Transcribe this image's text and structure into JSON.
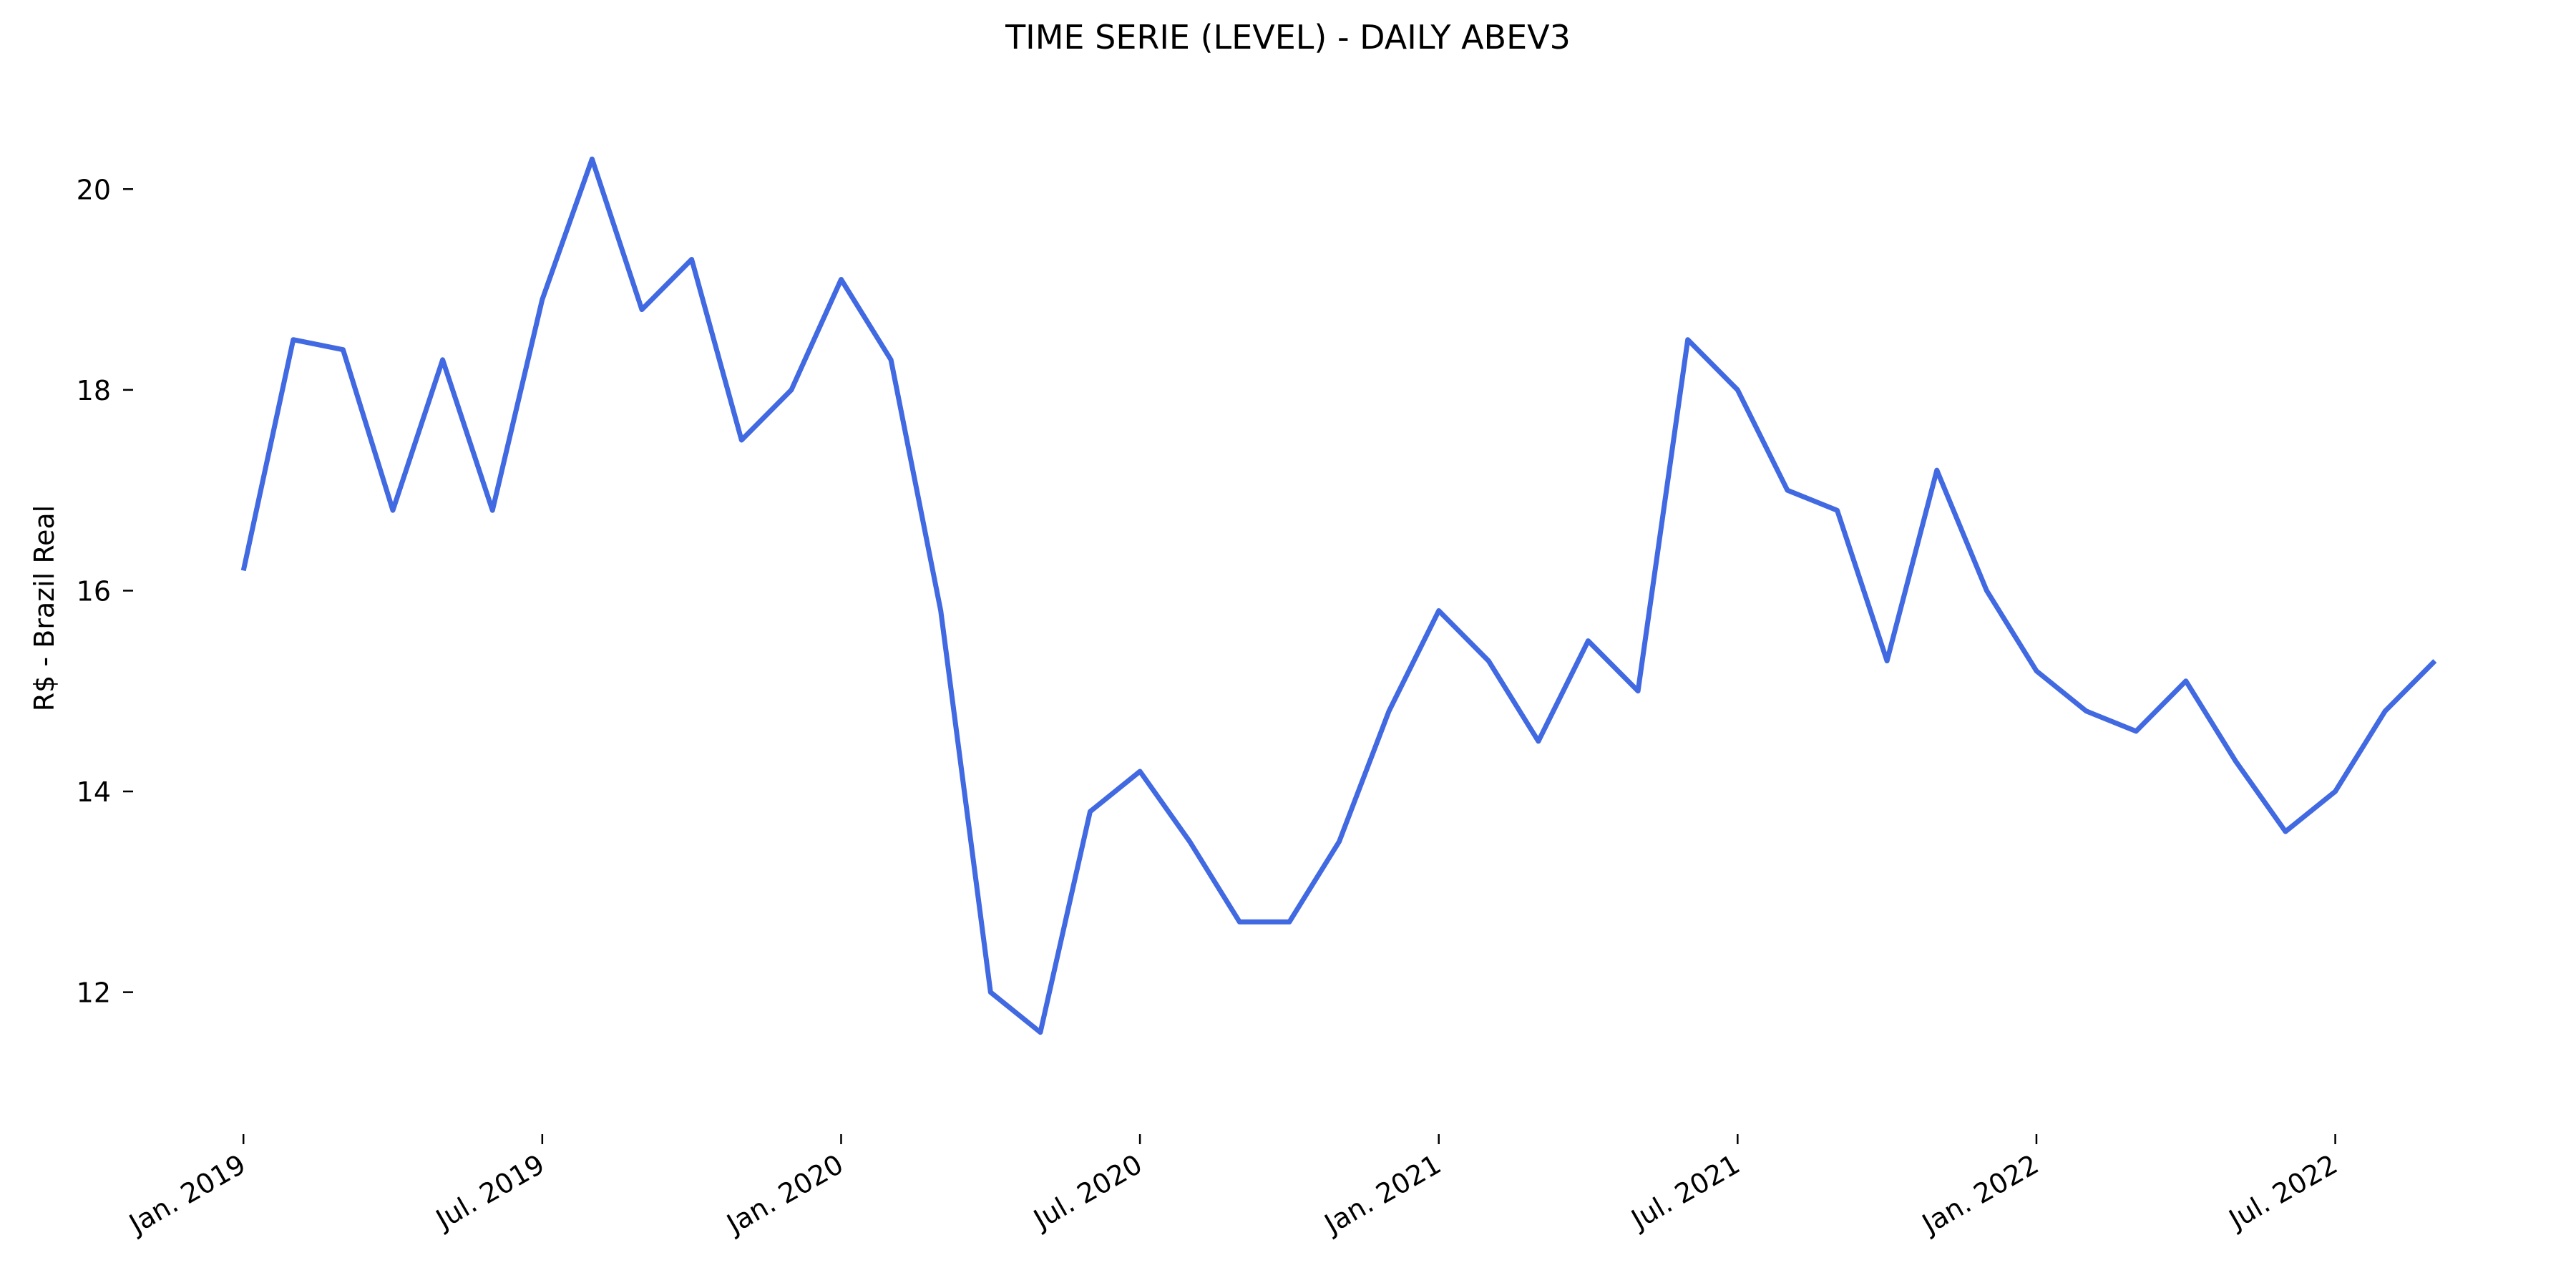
{
  "chart_data": {
    "type": "line",
    "title": "TIME SERIE (LEVEL) - DAILY ABEV3",
    "y_label": "R$ - Brazil Real",
    "x": [
      "2019-01",
      "2019-02",
      "2019-03",
      "2019-04",
      "2019-05",
      "2019-06",
      "2019-07",
      "2019-08",
      "2019-09",
      "2019-10",
      "2019-11",
      "2019-12",
      "2020-01",
      "2020-02",
      "2020-03",
      "2020-04",
      "2020-05",
      "2020-06",
      "2020-07",
      "2020-08",
      "2020-09",
      "2020-10",
      "2020-11",
      "2020-12",
      "2021-01",
      "2021-02",
      "2021-03",
      "2021-04",
      "2021-05",
      "2021-06",
      "2021-07",
      "2021-08",
      "2021-09",
      "2021-10",
      "2021-11",
      "2021-12",
      "2022-01",
      "2022-02",
      "2022-03",
      "2022-04",
      "2022-05",
      "2022-06",
      "2022-07",
      "2022-08",
      "2022-09"
    ],
    "series": [
      {
        "name": "ABEV3",
        "color": "#4169e1",
        "values": [
          16.2,
          18.5,
          18.4,
          16.8,
          18.3,
          16.8,
          18.9,
          20.3,
          18.8,
          19.3,
          17.5,
          18.0,
          19.1,
          18.3,
          15.8,
          12.0,
          11.6,
          13.8,
          14.2,
          13.5,
          12.7,
          12.7,
          13.5,
          14.8,
          15.8,
          15.3,
          14.5,
          15.5,
          15.0,
          18.5,
          18.0,
          17.0,
          16.8,
          15.3,
          17.2,
          16.0,
          15.2,
          14.8,
          14.6,
          15.1,
          14.3,
          13.6,
          14.0,
          14.8,
          15.3
        ]
      }
    ],
    "xlim": [
      "2018-11",
      "2022-11"
    ],
    "xticks": [
      {
        "value": "2019-01",
        "label": "Jan. 2019"
      },
      {
        "value": "2019-07",
        "label": "Jul. 2019"
      },
      {
        "value": "2020-01",
        "label": "Jan. 2020"
      },
      {
        "value": "2020-07",
        "label": "Jul. 2020"
      },
      {
        "value": "2021-01",
        "label": "Jan. 2021"
      },
      {
        "value": "2021-07",
        "label": "Jul. 2021"
      },
      {
        "value": "2022-01",
        "label": "Jan. 2022"
      },
      {
        "value": "2022-07",
        "label": "Jul. 2022"
      }
    ],
    "ylim": [
      10.7,
      20.9
    ],
    "yticks": [
      12,
      14,
      16,
      18,
      20
    ],
    "grid": false
  }
}
